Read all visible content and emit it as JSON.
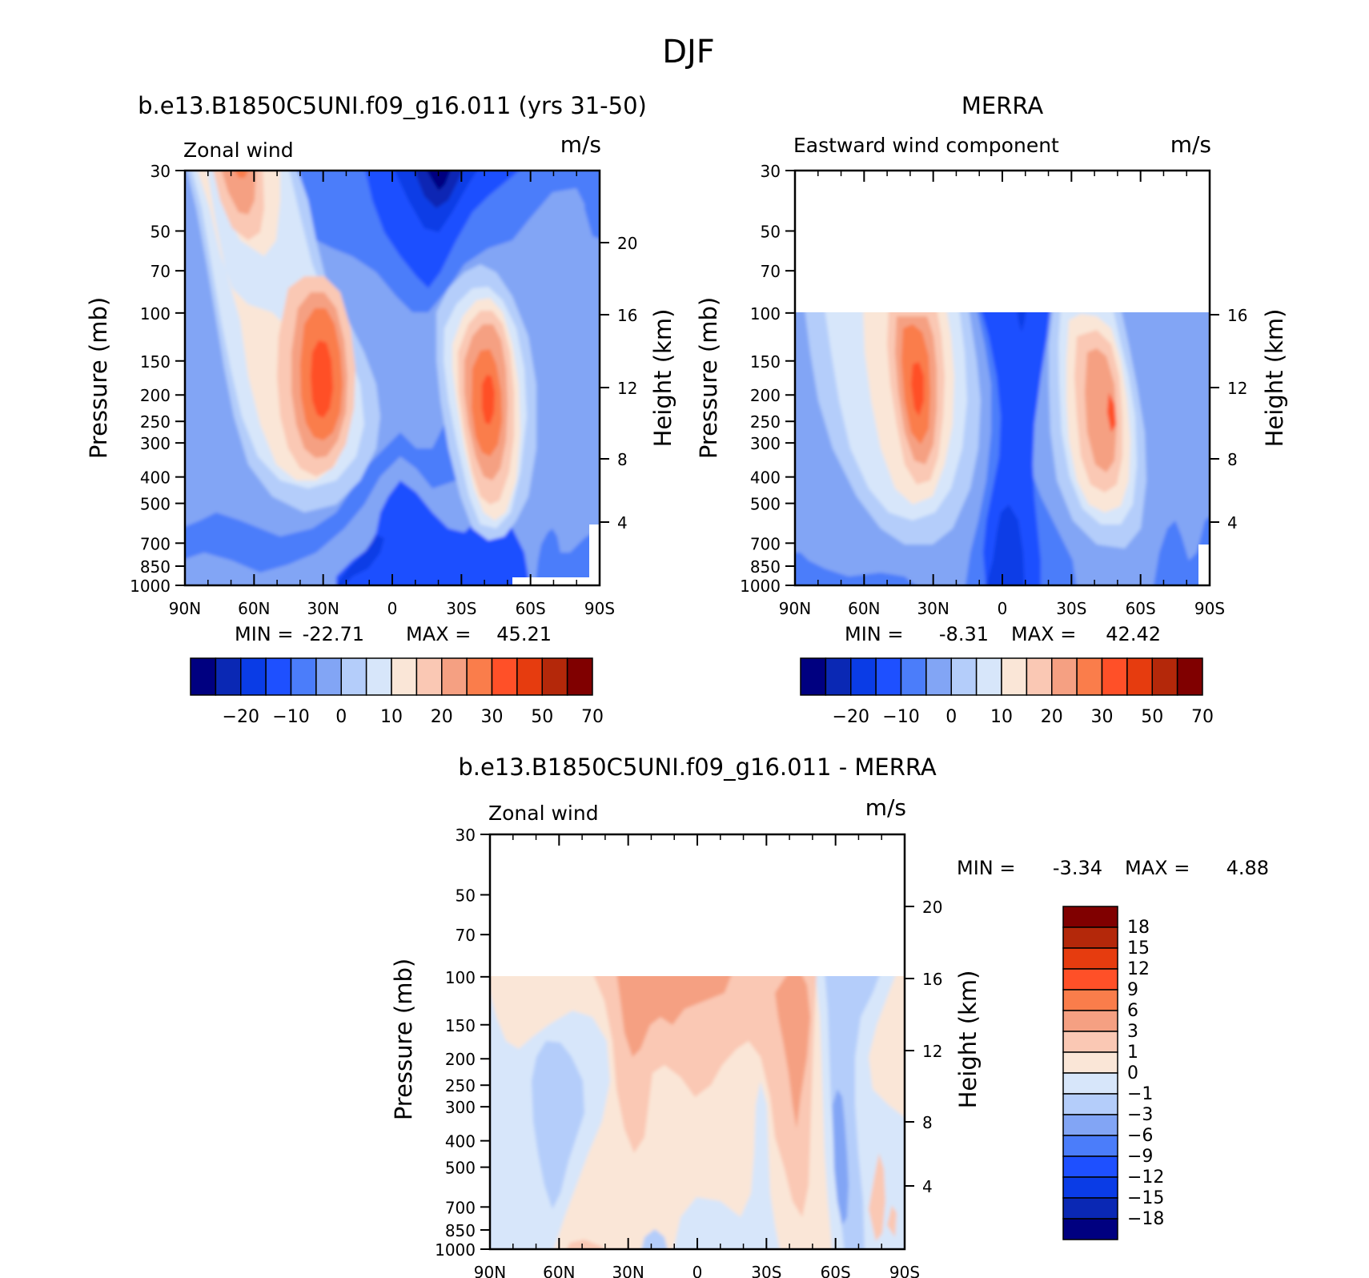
{
  "figure": {
    "title": "DJF",
    "panels": [
      {
        "id": "model",
        "title": "b.e13.B1850C5UNI.f09_g16.011 (yrs 31-50)",
        "left_label": "Zonal wind",
        "right_label": "m/s",
        "ylabel": "Pressure (mb)",
        "ylabel_right": "Height (km)",
        "x_ticks": [
          "90N",
          "60N",
          "30N",
          "0",
          "30S",
          "60S",
          "90S"
        ],
        "y_ticks": [
          "30",
          "50",
          "70",
          "100",
          "150",
          "200",
          "250",
          "300",
          "400",
          "500",
          "700",
          "850",
          "1000"
        ],
        "height_ticks": [
          "20",
          "16",
          "12",
          "8",
          "4"
        ],
        "min_label": "MIN =",
        "min_value": "-22.71",
        "max_label": "MAX =",
        "max_value": "45.21"
      },
      {
        "id": "obs",
        "title": "MERRA",
        "left_label": "Eastward wind component",
        "right_label": "m/s",
        "ylabel": "Pressure (mb)",
        "ylabel_right": "Height (km)",
        "x_ticks": [
          "90N",
          "60N",
          "30N",
          "0",
          "30S",
          "60S",
          "90S"
        ],
        "y_ticks": [
          "30",
          "50",
          "70",
          "100",
          "150",
          "200",
          "250",
          "300",
          "400",
          "500",
          "700",
          "850",
          "1000"
        ],
        "height_ticks": [
          "16",
          "12",
          "8",
          "4"
        ],
        "min_label": "MIN =",
        "min_value": "-8.31",
        "max_label": "MAX =",
        "max_value": "42.42"
      },
      {
        "id": "diff",
        "title": "b.e13.B1850C5UNI.f09_g16.011 - MERRA",
        "left_label": "Zonal wind",
        "right_label": "m/s",
        "ylabel": "Pressure (mb)",
        "ylabel_right": "Height (km)",
        "x_ticks": [
          "90N",
          "60N",
          "30N",
          "0",
          "30S",
          "60S",
          "90S"
        ],
        "y_ticks": [
          "30",
          "50",
          "70",
          "100",
          "150",
          "200",
          "250",
          "300",
          "400",
          "500",
          "700",
          "850",
          "1000"
        ],
        "height_ticks": [
          "20",
          "16",
          "12",
          "8",
          "4"
        ],
        "min_label": "MIN =",
        "min_value": "-3.34",
        "max_label": "MAX =",
        "max_value": "4.88"
      }
    ],
    "colorbar_main": {
      "colors": [
        "#000080",
        "#0a28b4",
        "#0a3ce6",
        "#1e50ff",
        "#4b7dfa",
        "#82a5f5",
        "#b4cdfa",
        "#d7e6fa",
        "#fae6d7",
        "#fac8b4",
        "#f5a082",
        "#fa7d4b",
        "#ff5028",
        "#e63c0f",
        "#b4280a",
        "#800000"
      ],
      "labels": [
        "-20",
        "-10",
        "0",
        "10",
        "20",
        "30",
        "50",
        "70"
      ]
    },
    "colorbar_diff": {
      "colors": [
        "#000080",
        "#0a28b4",
        "#0a3ce6",
        "#1e50ff",
        "#4b7dfa",
        "#82a5f5",
        "#b4cdfa",
        "#d7e6fa",
        "#fae6d7",
        "#fac8b4",
        "#f5a082",
        "#fa7d4b",
        "#ff5028",
        "#e63c0f",
        "#b4280a",
        "#800000"
      ],
      "labels": [
        "-18",
        "-15",
        "-12",
        "-9",
        "-6",
        "-3",
        "-1",
        "0",
        "1",
        "3",
        "6",
        "9",
        "12",
        "15",
        "18"
      ]
    }
  },
  "chart_data": [
    {
      "type": "heatmap",
      "title": "b.e13.B1850C5UNI.f09_g16.011 (yrs 31-50)",
      "variable": "Zonal wind",
      "units": "m/s",
      "xlabel": "",
      "ylabel": "Pressure (mb)",
      "ylabel_right": "Height (km)",
      "x": [
        "90N",
        "60N",
        "30N",
        "0",
        "30S",
        "60S",
        "90S"
      ],
      "y": [
        30,
        50,
        70,
        100,
        150,
        200,
        250,
        300,
        400,
        500,
        700,
        850,
        1000
      ],
      "y_scale": "log",
      "levels": [
        -25,
        -20,
        -15,
        -10,
        -5,
        0,
        5,
        10,
        15,
        20,
        25,
        30,
        40,
        50,
        60,
        70
      ],
      "min": -22.71,
      "max": 45.21,
      "features": [
        {
          "kind": "max",
          "lat": 30,
          "p": 200,
          "value": 45
        },
        {
          "kind": "max",
          "lat": -47,
          "p": 230,
          "value": 40
        },
        {
          "kind": "max",
          "lat": 65,
          "p": 30,
          "value": 25
        },
        {
          "kind": "min",
          "lat": -18,
          "p": 30,
          "value": -22.7
        }
      ]
    },
    {
      "type": "heatmap",
      "title": "MERRA",
      "variable": "Eastward wind component",
      "units": "m/s",
      "xlabel": "",
      "ylabel": "Pressure (mb)",
      "ylabel_right": "Height (km)",
      "x": [
        "90N",
        "60N",
        "30N",
        "0",
        "30S",
        "60S",
        "90S"
      ],
      "y": [
        30,
        50,
        70,
        100,
        150,
        200,
        250,
        300,
        400,
        500,
        700,
        850,
        1000
      ],
      "y_scale": "log",
      "data_top_p": 100,
      "levels": [
        -25,
        -20,
        -15,
        -10,
        -5,
        0,
        5,
        10,
        15,
        20,
        25,
        30,
        40,
        50,
        60,
        70
      ],
      "min": -8.31,
      "max": 42.42,
      "features": [
        {
          "kind": "max",
          "lat": 30,
          "p": 200,
          "value": 42.4
        },
        {
          "kind": "max",
          "lat": -48,
          "p": 270,
          "value": 36
        }
      ]
    },
    {
      "type": "heatmap",
      "title": "b.e13.B1850C5UNI.f09_g16.011 - MERRA",
      "variable": "Zonal wind",
      "units": "m/s",
      "xlabel": "",
      "ylabel": "Pressure (mb)",
      "ylabel_right": "Height (km)",
      "x": [
        "90N",
        "60N",
        "30N",
        "0",
        "30S",
        "60S",
        "90S"
      ],
      "y": [
        30,
        50,
        70,
        100,
        150,
        200,
        250,
        300,
        400,
        500,
        700,
        850,
        1000
      ],
      "y_scale": "log",
      "data_top_p": 100,
      "levels": [
        -18,
        -15,
        -12,
        -9,
        -6,
        -3,
        -1,
        0,
        1,
        3,
        6,
        9,
        12,
        15,
        18
      ],
      "min": -3.34,
      "max": 4.88
    }
  ]
}
